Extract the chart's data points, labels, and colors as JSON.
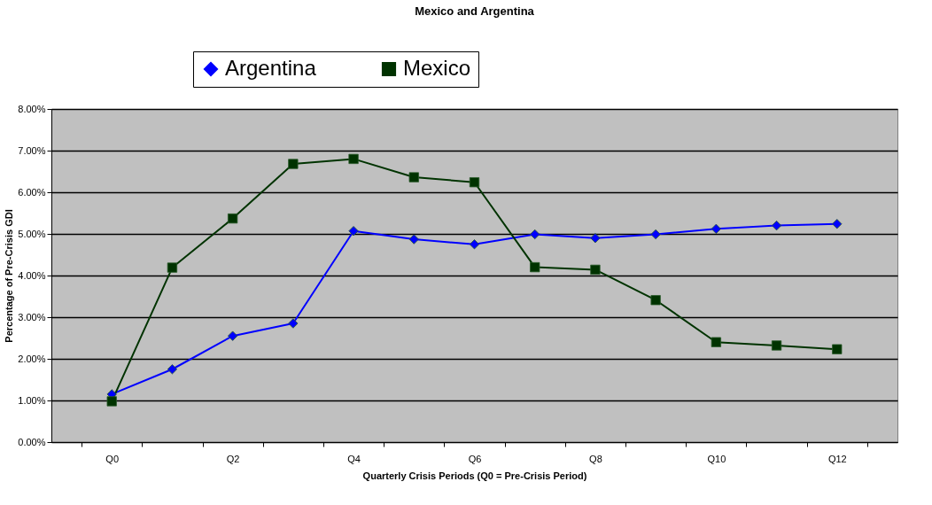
{
  "chart_data": {
    "type": "line",
    "title": "Mexico and Argentina",
    "xlabel": "Quarterly Crisis Periods (Q0 = Pre-Crisis Period)",
    "ylabel": "Percentage of Pre-Crisis GDI",
    "categories": [
      "Q0",
      null,
      "Q2",
      null,
      "Q4",
      null,
      "Q6",
      null,
      "Q8",
      null,
      "Q10",
      null,
      "Q12"
    ],
    "series": [
      {
        "name": "Argentina",
        "color": "#0000ff",
        "marker": "diamond",
        "values": [
          1.15,
          1.75,
          2.55,
          2.85,
          5.07,
          4.87,
          4.75,
          4.99,
          4.9,
          4.99,
          5.12,
          5.2,
          5.24
        ]
      },
      {
        "name": "Mexico",
        "color": "#003300",
        "marker": "square",
        "values": [
          0.98,
          4.19,
          5.37,
          6.68,
          6.8,
          6.36,
          6.24,
          4.2,
          4.14,
          3.41,
          2.4,
          2.32,
          2.23
        ]
      }
    ],
    "ylim": [
      0,
      8
    ],
    "yticks": [
      {
        "value": 0,
        "label": "0.00%"
      },
      {
        "value": 1,
        "label": "1.00%"
      },
      {
        "value": 2,
        "label": "2.00%"
      },
      {
        "value": 3,
        "label": "3.00%"
      },
      {
        "value": 4,
        "label": "4.00%"
      },
      {
        "value": 5,
        "label": "5.00%"
      },
      {
        "value": 6,
        "label": "6.00%"
      },
      {
        "value": 7,
        "label": "7.00%"
      },
      {
        "value": 8,
        "label": "8.00%"
      }
    ],
    "grid": "y",
    "legend": "top",
    "line_style": "solid"
  }
}
